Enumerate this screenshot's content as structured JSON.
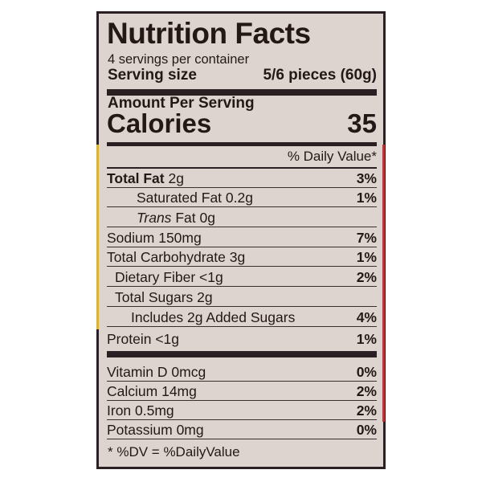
{
  "title": "Nutrition Facts",
  "servings_per_container": "4 servings per container",
  "serving_size": {
    "label": "Serving size",
    "value": "5/6 pieces (60g)"
  },
  "amount_per_serving": "Amount Per Serving",
  "calories": {
    "label": "Calories",
    "value": "35"
  },
  "daily_value_header": "% Daily Value*",
  "nutrients": [
    {
      "name": "Total Fat",
      "amount": "2g",
      "dv": "3%",
      "bold": true,
      "indent": 0
    },
    {
      "name": "Saturated Fat",
      "amount": "0.2g",
      "dv": "1%",
      "bold": false,
      "indent": 2
    },
    {
      "name": "Trans",
      "name_suffix": "Fat",
      "amount": "0g",
      "dv": "",
      "bold": false,
      "indent": 2
    },
    {
      "name": "Sodium",
      "amount": "150mg",
      "dv": "7%",
      "bold": false,
      "indent": 0
    },
    {
      "name": "Total Carbohydrate",
      "amount": "3g",
      "dv": "1%",
      "bold": false,
      "indent": 0
    },
    {
      "name": "Dietary Fiber",
      "amount": "<1g",
      "dv": "2%",
      "bold": false,
      "indent": 1
    },
    {
      "name": "Total Sugars",
      "amount": "2g",
      "dv": "",
      "bold": false,
      "indent": 1
    },
    {
      "name": "Includes 2g Added Sugars",
      "amount": "",
      "dv": "4%",
      "bold": false,
      "indent": 3
    },
    {
      "name": "Protein",
      "amount": "<1g",
      "dv": "1%",
      "bold": false,
      "indent": 0
    }
  ],
  "vitamins": [
    {
      "name": "Vitamin D",
      "amount": "0mcg",
      "dv": "0%"
    },
    {
      "name": "Calcium",
      "amount": "14mg",
      "dv": "2%"
    },
    {
      "name": "Iron",
      "amount": "0.5mg",
      "dv": "2%"
    },
    {
      "name": "Potassium",
      "amount": "0mg",
      "dv": "0%"
    }
  ],
  "footnote": "* %DV = %DailyValue"
}
